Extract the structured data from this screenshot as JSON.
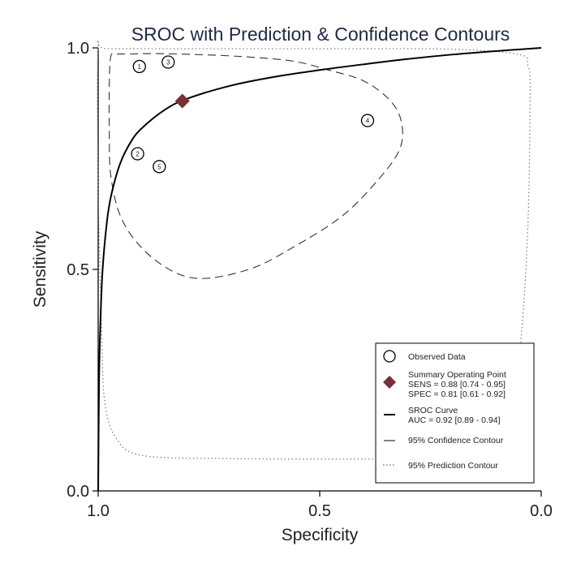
{
  "chart_data": {
    "type": "scatter",
    "title": "SROC with Prediction & Confidence Contours",
    "xlabel": "Specificity",
    "ylabel": "Sensitivity",
    "xlim": [
      1.0,
      0.0
    ],
    "ylim": [
      0.0,
      1.0
    ],
    "x_reversed": true,
    "x_ticks": [
      "1.0",
      "0.5",
      "0.0"
    ],
    "y_ticks": [
      "0.0",
      "0.5",
      "1.0"
    ],
    "grid": false,
    "legend_position": "bottom-right",
    "studies": [
      {
        "label": "1",
        "spec": 0.907,
        "sens": 0.958
      },
      {
        "label": "3",
        "spec": 0.842,
        "sens": 0.968
      },
      {
        "label": "4",
        "spec": 0.392,
        "sens": 0.836
      },
      {
        "label": "2",
        "spec": 0.911,
        "sens": 0.761
      },
      {
        "label": "5",
        "spec": 0.862,
        "sens": 0.732
      }
    ],
    "summary_point": {
      "spec": 0.81,
      "sens": 0.88,
      "color": "#7b2f36"
    },
    "sroc_curve": {
      "x_fpr": [
        0,
        0.002,
        0.005,
        0.01,
        0.02,
        0.03,
        0.05,
        0.075,
        0.1,
        0.15,
        0.2,
        0.3,
        0.4,
        0.5,
        0.6,
        0.7,
        0.8,
        0.9,
        1.0
      ],
      "y_sens": [
        0,
        0.25,
        0.38,
        0.5,
        0.61,
        0.67,
        0.74,
        0.79,
        0.82,
        0.86,
        0.885,
        0.915,
        0.935,
        0.95,
        0.963,
        0.975,
        0.985,
        0.993,
        1.0
      ]
    },
    "confidence_contour": {
      "x_fpr": [
        0.027,
        0.04,
        0.07,
        0.13,
        0.22,
        0.33,
        0.44,
        0.52,
        0.6,
        0.66,
        0.685,
        0.68,
        0.63,
        0.55,
        0.44,
        0.34,
        0.22,
        0.13,
        0.06,
        0.03,
        0.025,
        0.027
      ],
      "y_sens": [
        0.97,
        0.985,
        0.986,
        0.987,
        0.985,
        0.98,
        0.97,
        0.95,
        0.925,
        0.88,
        0.83,
        0.77,
        0.7,
        0.62,
        0.55,
        0.5,
        0.48,
        0.52,
        0.6,
        0.7,
        0.82,
        0.97
      ]
    },
    "prediction_contour": {
      "x_fpr": [
        0.0,
        0.02,
        0.2,
        0.5,
        0.8,
        0.95,
        0.97,
        0.975,
        0.97,
        0.955,
        0.93,
        0.85,
        0.6,
        0.3,
        0.1,
        0.04,
        0.015,
        0.008,
        0.0,
        0.0
      ],
      "y_sens": [
        0.995,
        0.998,
        0.998,
        0.998,
        0.997,
        0.985,
        0.96,
        0.9,
        0.6,
        0.35,
        0.13,
        0.075,
        0.072,
        0.073,
        0.08,
        0.12,
        0.2,
        0.35,
        0.7,
        0.995
      ]
    },
    "legend": {
      "observed": "Observed Data",
      "summary_title": "Summary Operating Point",
      "summary_sens": "SENS = 0.88 [0.74 - 0.95]",
      "summary_spec": "SPEC = 0.81 [0.61 - 0.92]",
      "sroc_title": "SROC Curve",
      "sroc_auc": "AUC = 0.92 [0.89 - 0.94]",
      "confidence": "95% Confidence Contour",
      "prediction": "95% Prediction Contour"
    }
  }
}
